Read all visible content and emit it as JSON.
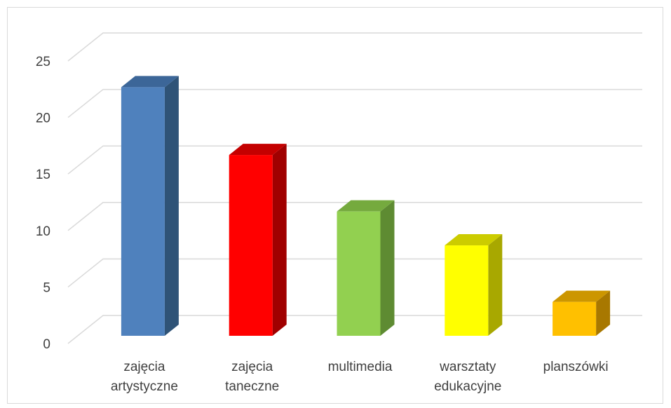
{
  "chart_data": {
    "type": "bar",
    "style": "3d-column",
    "title": "",
    "xlabel": "",
    "ylabel": "",
    "categories": [
      [
        "zajęcia",
        "artystyczne"
      ],
      [
        "zajęcia",
        "taneczne"
      ],
      [
        "multimedia"
      ],
      [
        "warsztaty",
        "edukacyjne"
      ],
      [
        "planszówki"
      ]
    ],
    "values": [
      22,
      16,
      11,
      8,
      3
    ],
    "colors": [
      {
        "front": "#4f81bd",
        "side": "#2f5377",
        "top": "#3c6698"
      },
      {
        "front": "#ff0000",
        "side": "#a00000",
        "top": "#c40000"
      },
      {
        "front": "#92d050",
        "side": "#5e8b32",
        "top": "#75aa3e"
      },
      {
        "front": "#ffff00",
        "side": "#a8a800",
        "top": "#cccc00"
      },
      {
        "front": "#ffc000",
        "side": "#a87800",
        "top": "#cc9600"
      }
    ],
    "ylim": [
      0,
      25
    ],
    "yticks": [
      "0",
      "5",
      "10",
      "15",
      "20",
      "25"
    ],
    "grid": true,
    "legend": "none"
  }
}
